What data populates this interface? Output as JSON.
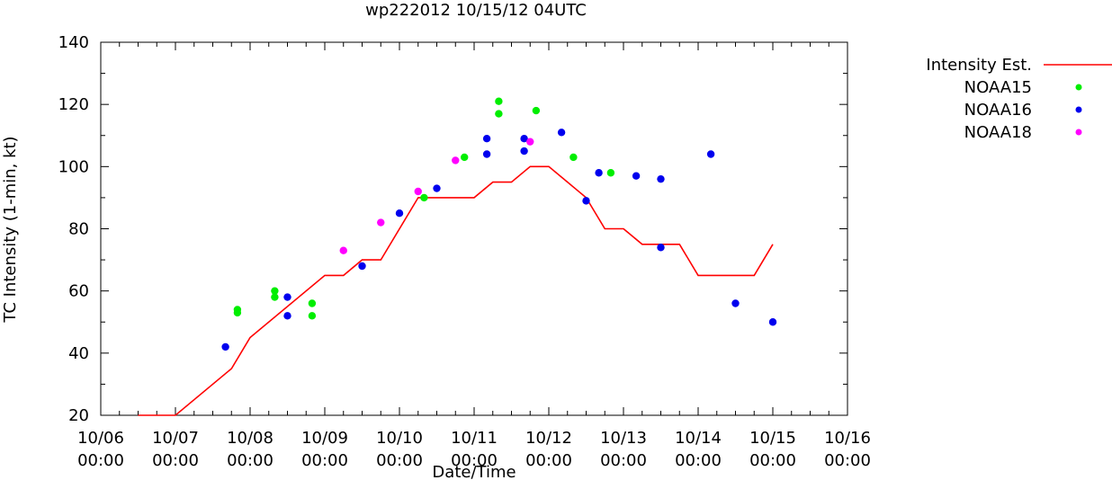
{
  "chart_data": {
    "type": "scatter",
    "title": "wp222012 10/15/12 04UTC",
    "xlabel": "Date/Time",
    "ylabel": "TC Intensity (1-min, kt)",
    "ylim": [
      20,
      140
    ],
    "yticks": [
      20,
      40,
      60,
      80,
      100,
      120,
      140
    ],
    "xlim": [
      0,
      10
    ],
    "xticks": [
      {
        "x": 0,
        "date": "10/06",
        "time": "00:00"
      },
      {
        "x": 1,
        "date": "10/07",
        "time": "00:00"
      },
      {
        "x": 2,
        "date": "10/08",
        "time": "00:00"
      },
      {
        "x": 3,
        "date": "10/09",
        "time": "00:00"
      },
      {
        "x": 4,
        "date": "10/10",
        "time": "00:00"
      },
      {
        "x": 5,
        "date": "10/11",
        "time": "00:00"
      },
      {
        "x": 6,
        "date": "10/12",
        "time": "00:00"
      },
      {
        "x": 7,
        "date": "10/13",
        "time": "00:00"
      },
      {
        "x": 8,
        "date": "10/14",
        "time": "00:00"
      },
      {
        "x": 9,
        "date": "10/15",
        "time": "00:00"
      },
      {
        "x": 10,
        "date": "10/16",
        "time": "00:00"
      }
    ],
    "x_units": "days since 10/06 00:00",
    "series": [
      {
        "name": "Intensity Est.",
        "kind": "line",
        "color": "#ff0000",
        "points": [
          [
            0.5,
            20
          ],
          [
            1.0,
            20
          ],
          [
            1.75,
            35
          ],
          [
            2.0,
            45
          ],
          [
            3.0,
            65
          ],
          [
            3.25,
            65
          ],
          [
            3.5,
            70
          ],
          [
            3.75,
            70
          ],
          [
            4.25,
            90
          ],
          [
            5.0,
            90
          ],
          [
            5.25,
            95
          ],
          [
            5.5,
            95
          ],
          [
            5.75,
            100
          ],
          [
            6.0,
            100
          ],
          [
            6.5,
            90
          ],
          [
            6.75,
            80
          ],
          [
            7.0,
            80
          ],
          [
            7.25,
            75
          ],
          [
            7.75,
            75
          ],
          [
            8.0,
            65
          ],
          [
            8.75,
            65
          ],
          [
            9.0,
            75
          ]
        ]
      },
      {
        "name": "NOAA15",
        "kind": "points",
        "color": "#00ee00",
        "points": [
          [
            1.83,
            53
          ],
          [
            1.83,
            54
          ],
          [
            2.33,
            58
          ],
          [
            2.33,
            60
          ],
          [
            2.83,
            52
          ],
          [
            2.83,
            56
          ],
          [
            4.33,
            90
          ],
          [
            4.87,
            103
          ],
          [
            5.33,
            117
          ],
          [
            5.33,
            121
          ],
          [
            5.83,
            118
          ],
          [
            6.33,
            103
          ],
          [
            6.83,
            98
          ]
        ]
      },
      {
        "name": "NOAA16",
        "kind": "points",
        "color": "#0000ee",
        "points": [
          [
            1.67,
            42
          ],
          [
            2.5,
            52
          ],
          [
            2.5,
            58
          ],
          [
            3.5,
            68
          ],
          [
            4.0,
            85
          ],
          [
            4.5,
            93
          ],
          [
            5.17,
            104
          ],
          [
            5.17,
            109
          ],
          [
            5.67,
            109
          ],
          [
            5.67,
            105
          ],
          [
            6.17,
            111
          ],
          [
            6.5,
            89
          ],
          [
            6.67,
            98
          ],
          [
            7.17,
            97
          ],
          [
            7.5,
            96
          ],
          [
            7.5,
            74
          ],
          [
            8.17,
            104
          ],
          [
            8.5,
            56
          ],
          [
            9.0,
            50
          ]
        ]
      },
      {
        "name": "NOAA18",
        "kind": "points",
        "color": "#ff00ff",
        "points": [
          [
            3.25,
            73
          ],
          [
            3.75,
            82
          ],
          [
            4.25,
            92
          ],
          [
            4.75,
            102
          ],
          [
            5.75,
            108
          ]
        ]
      }
    ],
    "legend": "outside-right",
    "grid": false
  }
}
